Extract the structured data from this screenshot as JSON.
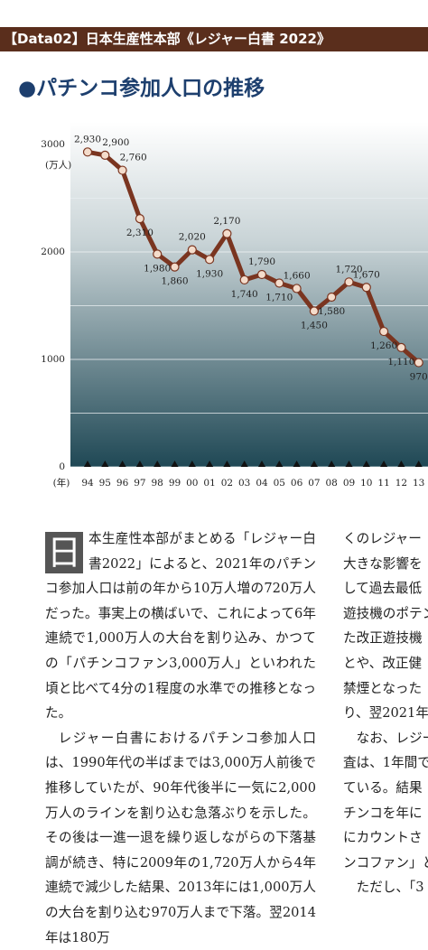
{
  "header": {
    "title": "【Data02】日本生産性本部《レジャー白書 2022》"
  },
  "section_title": "●パチンコ参加人口の推移",
  "chart_data": {
    "type": "line",
    "y_unit": "(万人)",
    "x_label": "(年)",
    "categories": [
      "94",
      "95",
      "96",
      "97",
      "98",
      "99",
      "00",
      "01",
      "02",
      "03",
      "04",
      "05",
      "06",
      "07",
      "08",
      "09",
      "10",
      "11",
      "12",
      "13"
    ],
    "series": [
      {
        "color": "#7a3520",
        "values": [
          2930,
          2900,
          2760,
          2310,
          1980,
          1860,
          2020,
          1930,
          2170,
          1740,
          1790,
          1710,
          1660,
          1450,
          1580,
          1720,
          1670,
          1260,
          1110,
          970
        ],
        "value_labels": [
          "2,930",
          "2,900",
          "2,760",
          "2,310",
          "1,980",
          "1,860",
          "2,020",
          "1,930",
          "2,170",
          "1,740",
          "1,790",
          "1,710",
          "1,660",
          "1,450",
          "1,580",
          "1,720",
          "1,670",
          "1,260",
          "1,110",
          "970"
        ]
      }
    ],
    "ylim": [
      0,
      3000
    ],
    "yticks": [
      0,
      1000,
      2000,
      3000
    ],
    "minor_yticks": [
      500,
      1500,
      2500
    ],
    "grid": true
  },
  "article": {
    "left": {
      "dropcap": "日",
      "p1": "本生産性本部がまとめる「レジャー白書2022」によると、2021年のパチンコ参加人口は前の年から10万人増の720万人だった。事実上の横ばいで、これによって6年連続で1,000万人の大台を割り込み、かつての「パチンコファン3,000万人」といわれた頃と比べて4分の1程度の水準での推移となった。",
      "p2": "レジャー白書におけるパチンコ参加人口は、1990年代の半ばまでは3,000万人前後で推移していたが、90年代後半に一気に2,000万人のラインを割り込む急落ぶりを示した。その後は一進一退を繰り返しながらの下落基調が続き、特に2009年の1,720万人から4年連続で減少した結果、2013年には1,000万人の大台を割り込む970万人まで下落。翌2014年は180万"
    },
    "right": {
      "lines": [
        "くのレジャー",
        "大きな影響を",
        "して過去最低",
        "遊技機のポテン",
        "た改正遊技機",
        "とや、改正健",
        "禁煙となった",
        "り、翌2021年",
        "　なお、レジー",
        "査は、1年間で",
        "ている。結果",
        "チンコを年に",
        "にカウントさ",
        "ンコファン」と",
        "　ただし、「3"
      ]
    }
  }
}
